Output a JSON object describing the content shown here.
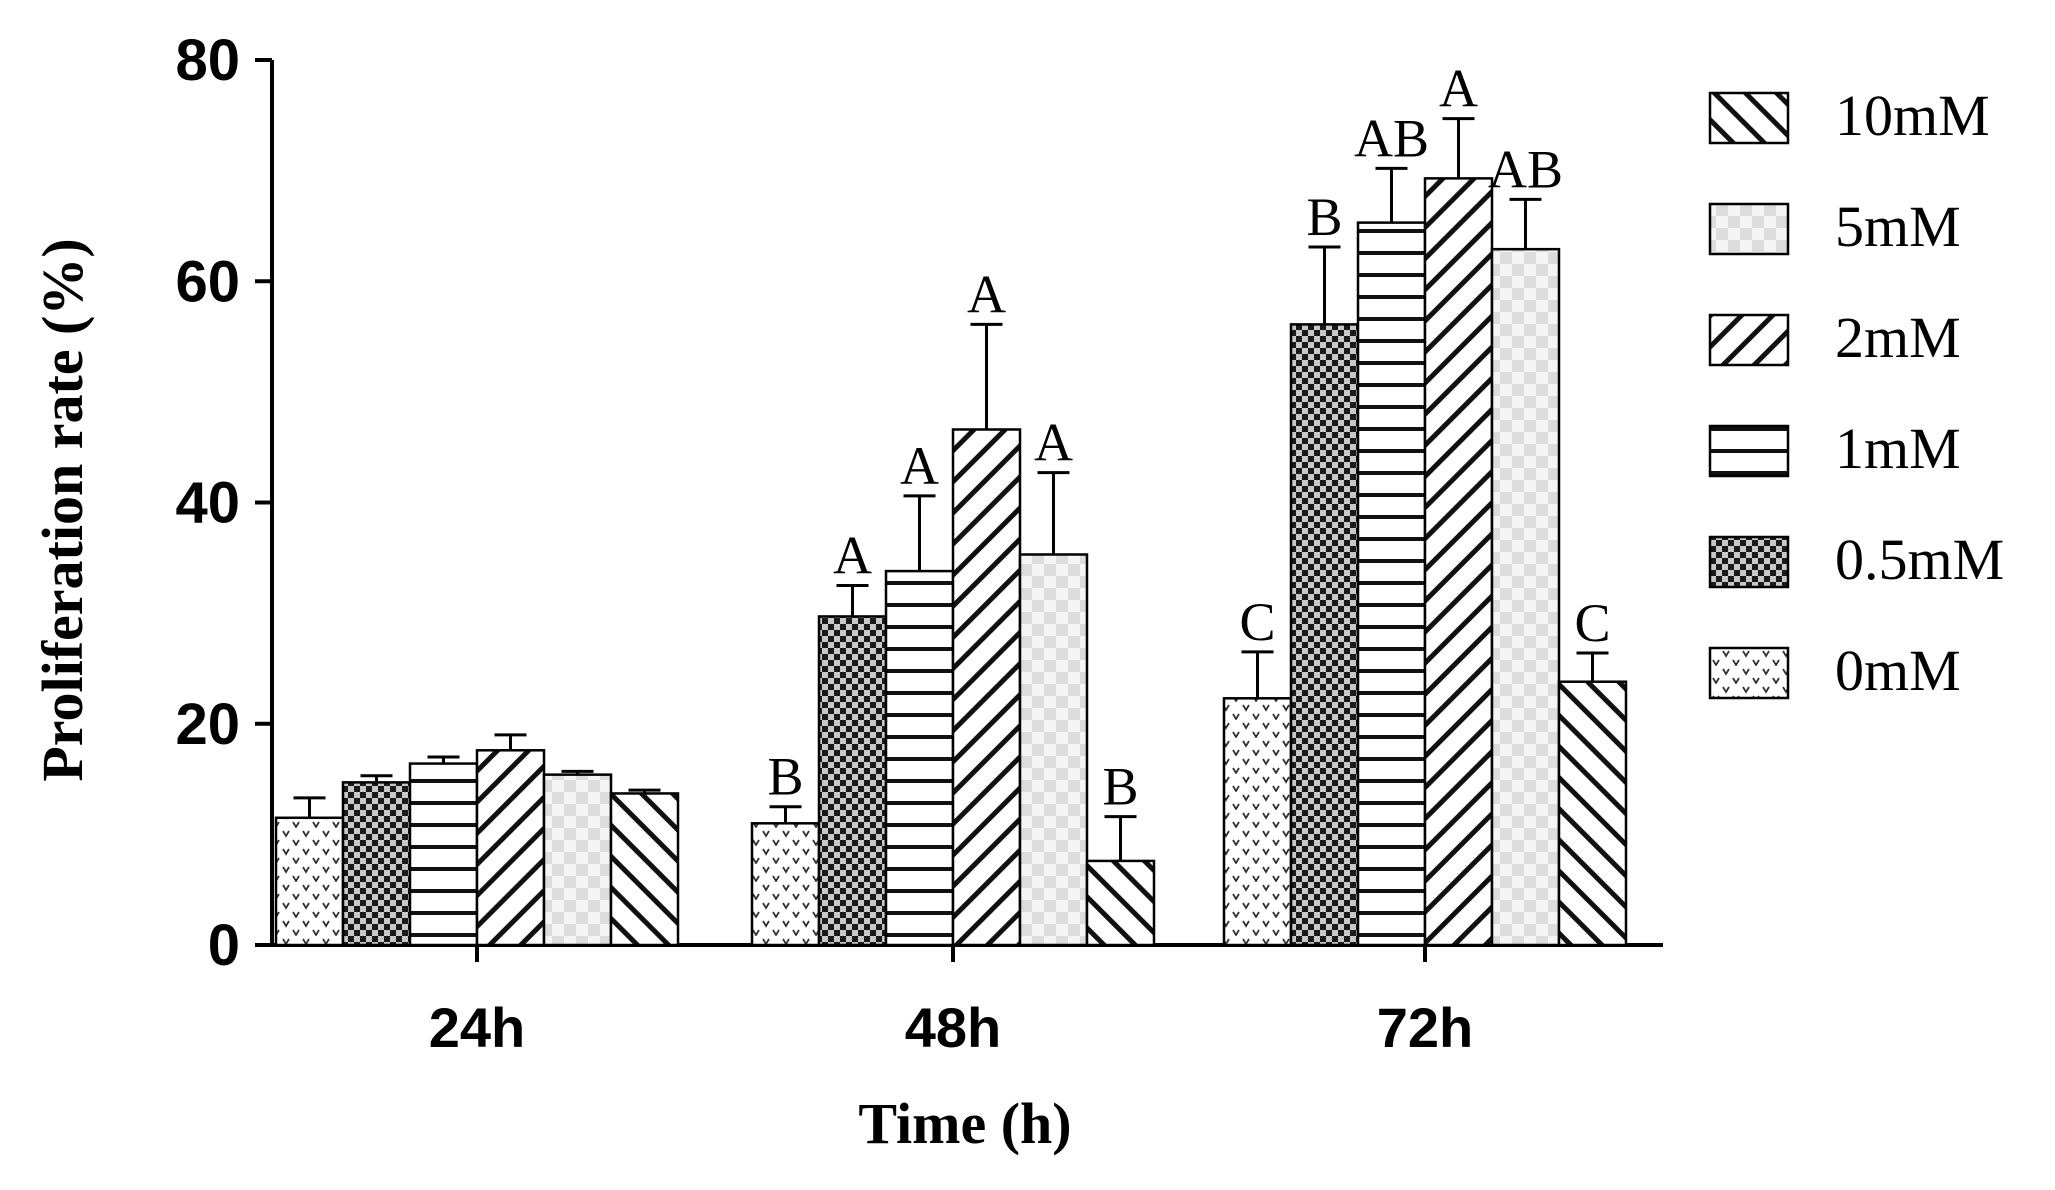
{
  "chart_data": {
    "type": "bar",
    "title": "",
    "xlabel": "Time (h)",
    "ylabel": "Proliferation rate (%)",
    "ylim": [
      0,
      80
    ],
    "yticks": [
      0,
      20,
      40,
      60,
      80
    ],
    "categories": [
      "24h",
      "48h",
      "72h"
    ],
    "legend_position": "right",
    "legend_order": [
      "10mM",
      "5mM",
      "2mM",
      "1mM",
      "0.5mM",
      "0mM"
    ],
    "series": [
      {
        "name": "0mM",
        "pattern": "dots-v",
        "values": [
          11.5,
          11.0,
          22.3
        ],
        "errors": [
          1.8,
          1.5,
          4.2
        ],
        "letters": [
          "",
          "B",
          "C"
        ]
      },
      {
        "name": "0.5mM",
        "pattern": "checker-dark",
        "values": [
          14.7,
          29.7,
          56.1
        ],
        "errors": [
          0.6,
          2.8,
          7.0
        ],
        "letters": [
          "",
          "A",
          "B"
        ]
      },
      {
        "name": "1mM",
        "pattern": "horizontal",
        "values": [
          16.4,
          33.8,
          65.3
        ],
        "errors": [
          0.6,
          6.8,
          4.9
        ],
        "letters": [
          "",
          "A",
          "AB"
        ]
      },
      {
        "name": "2mM",
        "pattern": "diag-right",
        "values": [
          17.6,
          46.6,
          69.3
        ],
        "errors": [
          1.4,
          9.5,
          5.4
        ],
        "letters": [
          "",
          "A",
          "A"
        ]
      },
      {
        "name": "5mM",
        "pattern": "checker-light",
        "values": [
          15.4,
          35.3,
          62.9
        ],
        "errors": [
          0.3,
          7.4,
          4.5
        ],
        "letters": [
          "",
          "A",
          "AB"
        ]
      },
      {
        "name": "10mM",
        "pattern": "diag-left",
        "values": [
          13.7,
          7.6,
          23.8
        ],
        "errors": [
          0.3,
          4.0,
          2.6
        ],
        "letters": [
          "",
          "B",
          "C"
        ]
      }
    ]
  }
}
